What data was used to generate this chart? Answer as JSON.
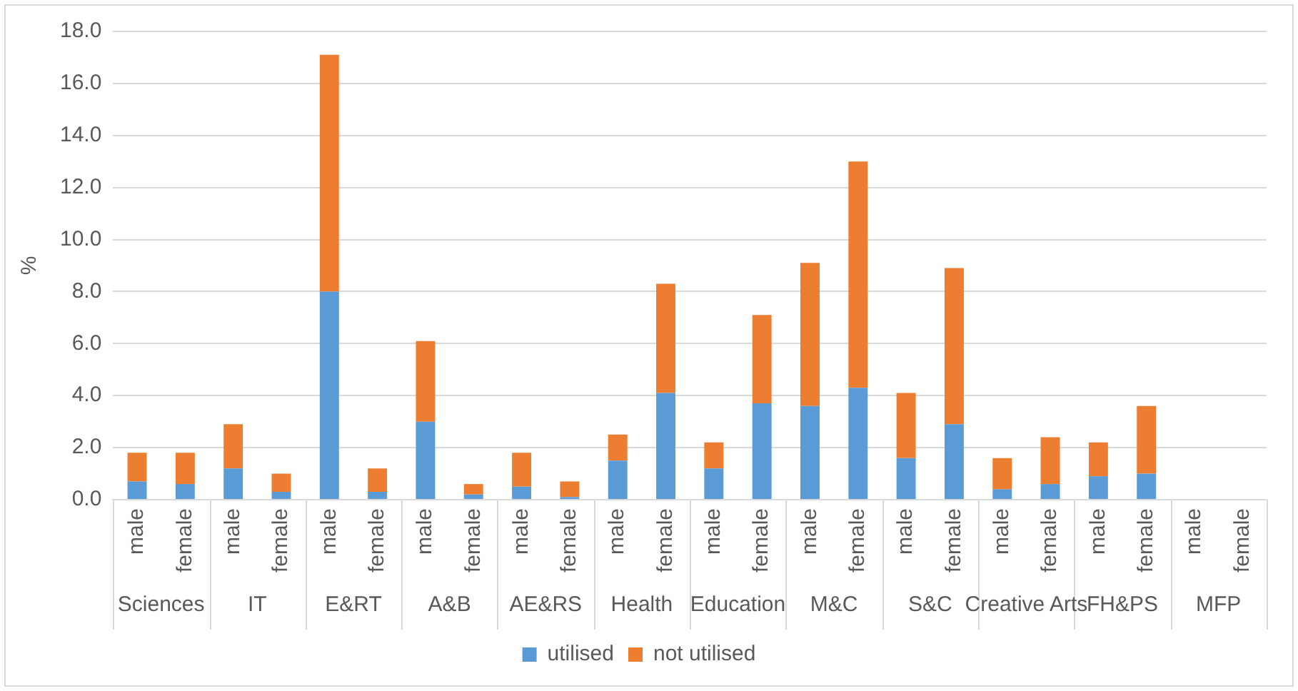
{
  "chart_data": {
    "type": "bar",
    "stacked": true,
    "ylabel": "%",
    "categories": [
      "male",
      "female",
      "male",
      "female",
      "male",
      "female",
      "male",
      "female",
      "male",
      "female",
      "male",
      "female",
      "male",
      "female",
      "male",
      "female",
      "male",
      "female",
      "male",
      "female",
      "male",
      "female",
      "male",
      "female"
    ],
    "annotations": [
      "Sciences",
      "IT",
      "E&RT",
      "A&B",
      "AE&RS",
      "Health",
      "Education",
      "M&C",
      "S&C",
      "Creative Arts",
      "FH&PS",
      "MFP"
    ],
    "series": [
      {
        "name": "utilised",
        "color": "#5b9bd5",
        "values": [
          0.7,
          0.6,
          1.2,
          0.3,
          8.0,
          0.3,
          3.0,
          0.2,
          0.5,
          0.1,
          1.5,
          4.1,
          1.2,
          3.7,
          3.6,
          4.3,
          1.6,
          2.9,
          0.4,
          0.6,
          0.9,
          1.0,
          0,
          0
        ]
      },
      {
        "name": "not utilised",
        "color": "#ed7d31",
        "values": [
          1.1,
          1.2,
          1.7,
          0.7,
          9.1,
          0.9,
          3.1,
          0.4,
          1.3,
          0.6,
          1.0,
          4.2,
          1.0,
          3.4,
          5.5,
          8.7,
          2.5,
          6.0,
          1.2,
          1.8,
          1.3,
          2.6,
          0,
          0
        ]
      }
    ],
    "ylim": [
      0,
      18
    ],
    "yticks": [
      {
        "value": 0,
        "label": "0.0"
      },
      {
        "value": 2,
        "label": "2.0"
      },
      {
        "value": 4,
        "label": "4.0"
      },
      {
        "value": 6,
        "label": "6.0"
      },
      {
        "value": 8,
        "label": "8.0"
      },
      {
        "value": 10,
        "label": "10.0"
      },
      {
        "value": 12,
        "label": "12.0"
      },
      {
        "value": 14,
        "label": "14.0"
      },
      {
        "value": 16,
        "label": "16.0"
      },
      {
        "value": 18,
        "label": "18.0"
      }
    ],
    "grid": "y",
    "legend": "bottom"
  }
}
